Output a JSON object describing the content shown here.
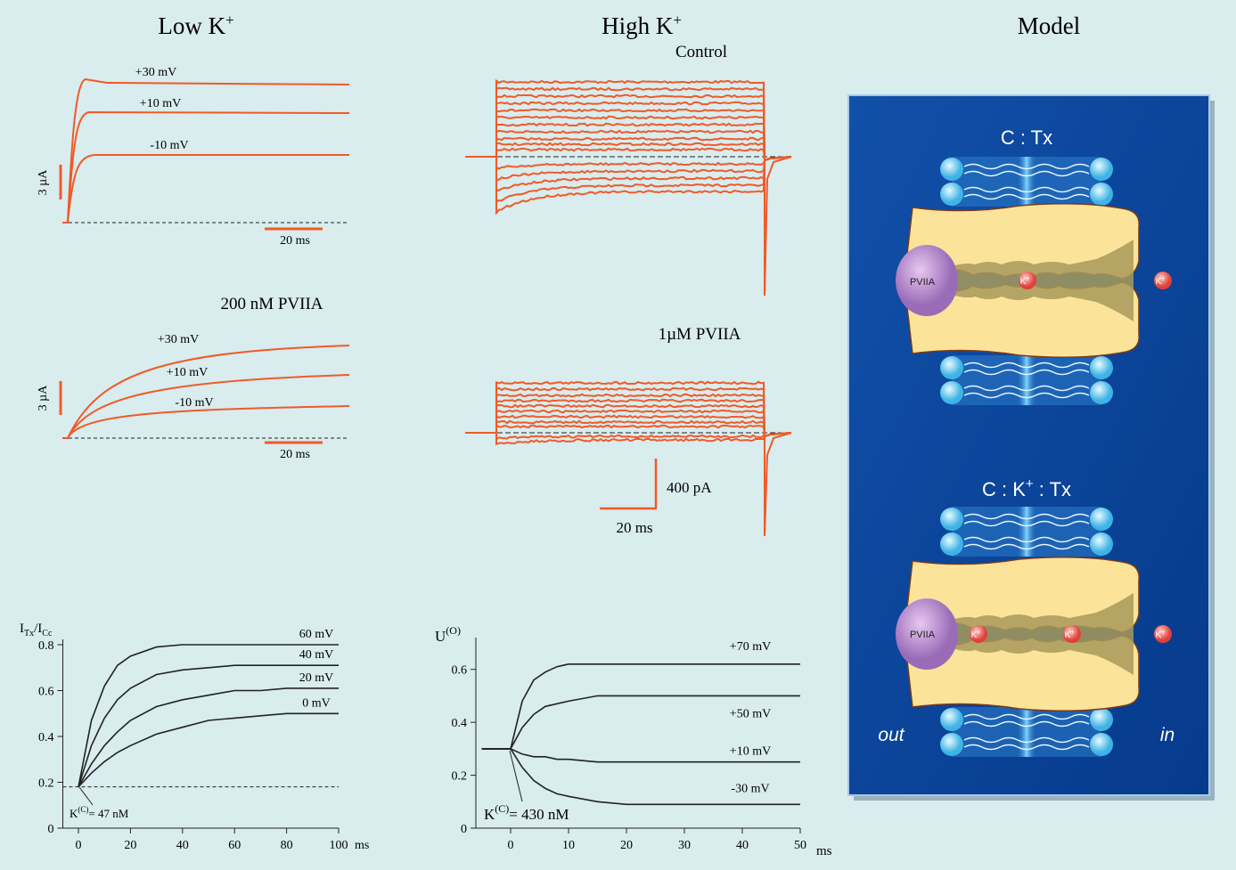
{
  "headers": [
    {
      "text": "Low K",
      "sup": "+"
    },
    {
      "text": "High K",
      "sup": "+"
    },
    {
      "text": "Model"
    }
  ],
  "low_k": {
    "control": {
      "trace_labels": [
        "+30 mV",
        "+10 mV",
        "-10 mV"
      ],
      "scale_current": "3 µA",
      "scale_time": "20 ms"
    },
    "toxin": {
      "title": "200 nM PVIIA",
      "trace_labels": [
        "+30 mV",
        "+10 mV",
        "-10 mV"
      ],
      "scale_current": "3 µA",
      "scale_time": "20 ms"
    }
  },
  "high_k": {
    "control_title": "Control",
    "toxin_title": "1µM PVIIA",
    "scale_current": "400 pA",
    "scale_time": "20 ms"
  },
  "model": {
    "top": {
      "title": "C : Tx",
      "toxin": "PVIIA",
      "ions": [
        {
          "text": "K",
          "sup": "+"
        },
        {
          "text": "K",
          "sup": "+"
        }
      ]
    },
    "bottom": {
      "title": {
        "text": "C : K",
        "sup": "+",
        "after": " : Tx"
      },
      "toxin": "PVIIA",
      "ions": [
        {
          "text": "K",
          "sup": "+"
        },
        {
          "text": "K",
          "sup": "+"
        },
        {
          "text": "K",
          "sup": "+"
        }
      ]
    },
    "out": "out",
    "in": "in"
  },
  "chart_data": [
    {
      "type": "line",
      "y_label": {
        "base": "I",
        "sub": "Tx",
        "base2": "/I",
        "sub2": "Cc"
      },
      "x_unit": "ms",
      "annotation": {
        "base": "K",
        "sup": "(C)",
        "after": "= 47 nM"
      },
      "reference_line": 0.18,
      "x": [
        0,
        5,
        10,
        15,
        20,
        30,
        40,
        50,
        60,
        70,
        80,
        90,
        100
      ],
      "series": [
        {
          "name": "60 mV",
          "color": "#222222",
          "values": [
            0.18,
            0.47,
            0.62,
            0.71,
            0.75,
            0.79,
            0.8,
            0.8,
            0.8,
            0.8,
            0.8,
            0.8,
            0.8
          ]
        },
        {
          "name": "40 mV",
          "color": "#222222",
          "values": [
            0.18,
            0.36,
            0.48,
            0.56,
            0.61,
            0.67,
            0.69,
            0.7,
            0.71,
            0.71,
            0.71,
            0.71,
            0.71
          ]
        },
        {
          "name": "20 mV",
          "color": "#222222",
          "values": [
            0.18,
            0.28,
            0.36,
            0.42,
            0.47,
            0.53,
            0.56,
            0.58,
            0.6,
            0.6,
            0.61,
            0.61,
            0.61
          ]
        },
        {
          "name": "0 mV",
          "color": "#222222",
          "values": [
            0.18,
            0.24,
            0.29,
            0.33,
            0.36,
            0.41,
            0.44,
            0.47,
            0.48,
            0.49,
            0.5,
            0.5,
            0.5
          ]
        }
      ],
      "xlim": [
        -6,
        100
      ],
      "ylim": [
        0,
        0.8
      ],
      "xticks": [
        0,
        20,
        40,
        60,
        80,
        100
      ],
      "yticks": [
        0,
        0.2,
        0.4,
        0.6,
        0.8
      ]
    },
    {
      "type": "line",
      "y_label": {
        "base": "U",
        "sup": "(O)"
      },
      "x_unit": "ms",
      "annotation": {
        "base": "K",
        "sup": "(C)",
        "after": "= 430 nM"
      },
      "x": [
        -5,
        0,
        2,
        4,
        6,
        8,
        10,
        15,
        20,
        30,
        40,
        50
      ],
      "series": [
        {
          "name": "+70 mV",
          "color": "#222222",
          "values": [
            0.3,
            0.3,
            0.48,
            0.56,
            0.59,
            0.61,
            0.62,
            0.62,
            0.62,
            0.62,
            0.62,
            0.62
          ]
        },
        {
          "name": "+50 mV",
          "color": "#222222",
          "values": [
            0.3,
            0.3,
            0.38,
            0.43,
            0.46,
            0.47,
            0.48,
            0.5,
            0.5,
            0.5,
            0.5,
            0.5
          ]
        },
        {
          "name": "+10 mV",
          "color": "#222222",
          "values": [
            0.3,
            0.3,
            0.28,
            0.27,
            0.27,
            0.26,
            0.26,
            0.25,
            0.25,
            0.25,
            0.25,
            0.25
          ]
        },
        {
          "name": "-30 mV",
          "color": "#222222",
          "values": [
            0.3,
            0.3,
            0.23,
            0.18,
            0.15,
            0.13,
            0.12,
            0.1,
            0.09,
            0.09,
            0.09,
            0.09
          ]
        }
      ],
      "xlim": [
        -6,
        50
      ],
      "ylim": [
        0,
        0.7
      ],
      "xticks": [
        0,
        10,
        20,
        30,
        40,
        50
      ],
      "yticks": [
        0,
        0.2,
        0.4,
        0.6
      ]
    }
  ]
}
